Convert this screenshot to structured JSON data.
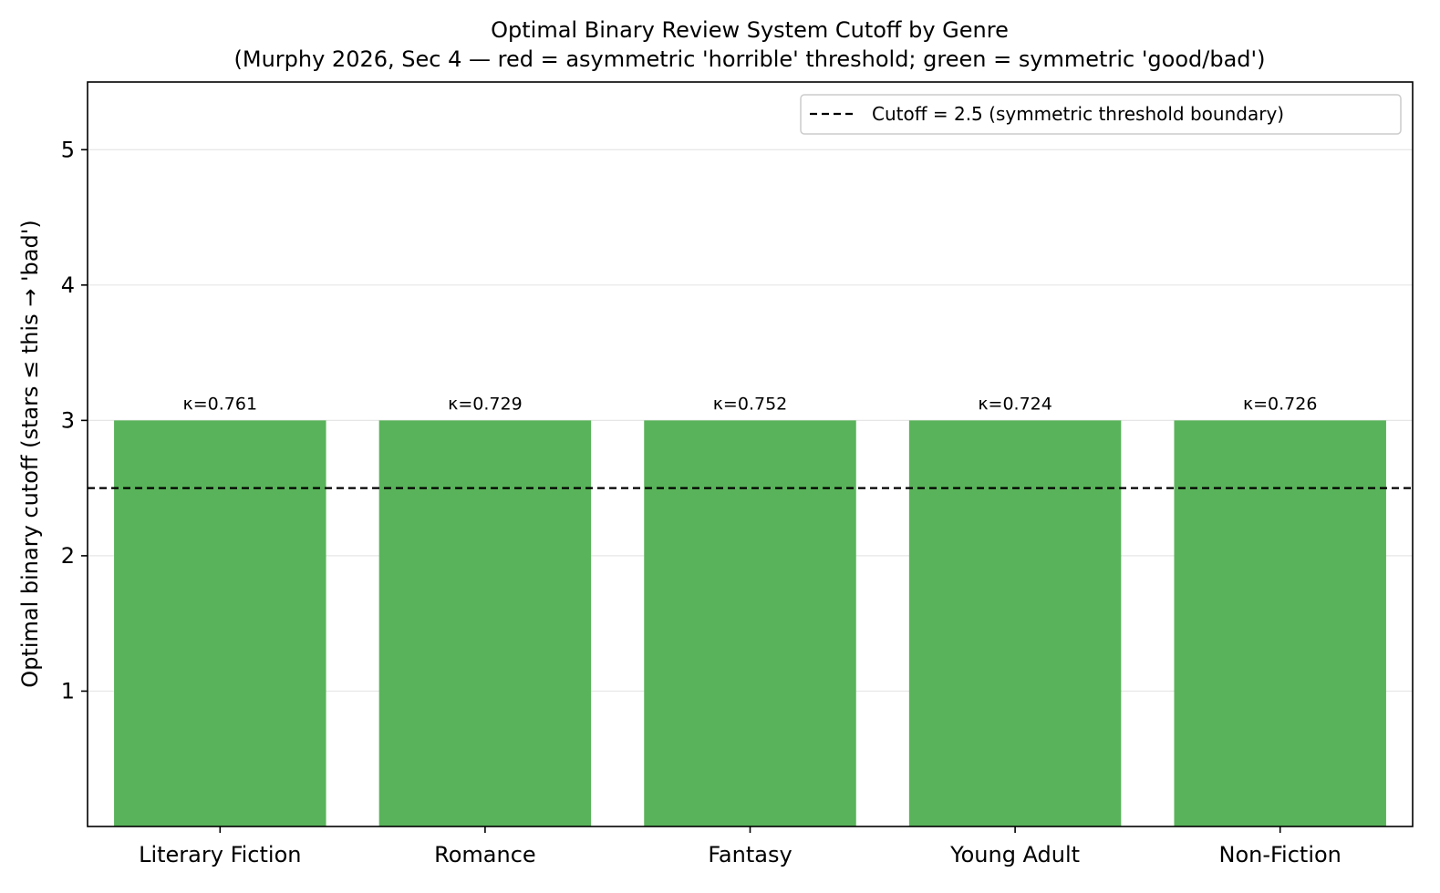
{
  "chart_data": {
    "type": "bar",
    "title": "Optimal Binary Review System Cutoff by Genre",
    "subtitle": "(Murphy 2026, Sec 4 — red = asymmetric 'horrible' threshold; green = symmetric 'good/bad')",
    "xlabel": "",
    "ylabel": "Optimal binary cutoff (stars ≤ this → 'bad')",
    "categories": [
      "Literary Fiction",
      "Romance",
      "Fantasy",
      "Young Adult",
      "Non-Fiction"
    ],
    "values": [
      3,
      3,
      3,
      3,
      3
    ],
    "data_labels": [
      "κ=0.761",
      "κ=0.729",
      "κ=0.752",
      "κ=0.724",
      "κ=0.726"
    ],
    "ylim": [
      0,
      5.5
    ],
    "yticks": [
      1,
      2,
      3,
      4,
      5
    ],
    "grid": "y",
    "bar_color": "#59b35a",
    "reference_line": {
      "y": 2.5,
      "style": "dashed",
      "color": "#000000",
      "label": "Cutoff = 2.5  (symmetric threshold boundary)"
    },
    "legend_position": "top-right"
  }
}
